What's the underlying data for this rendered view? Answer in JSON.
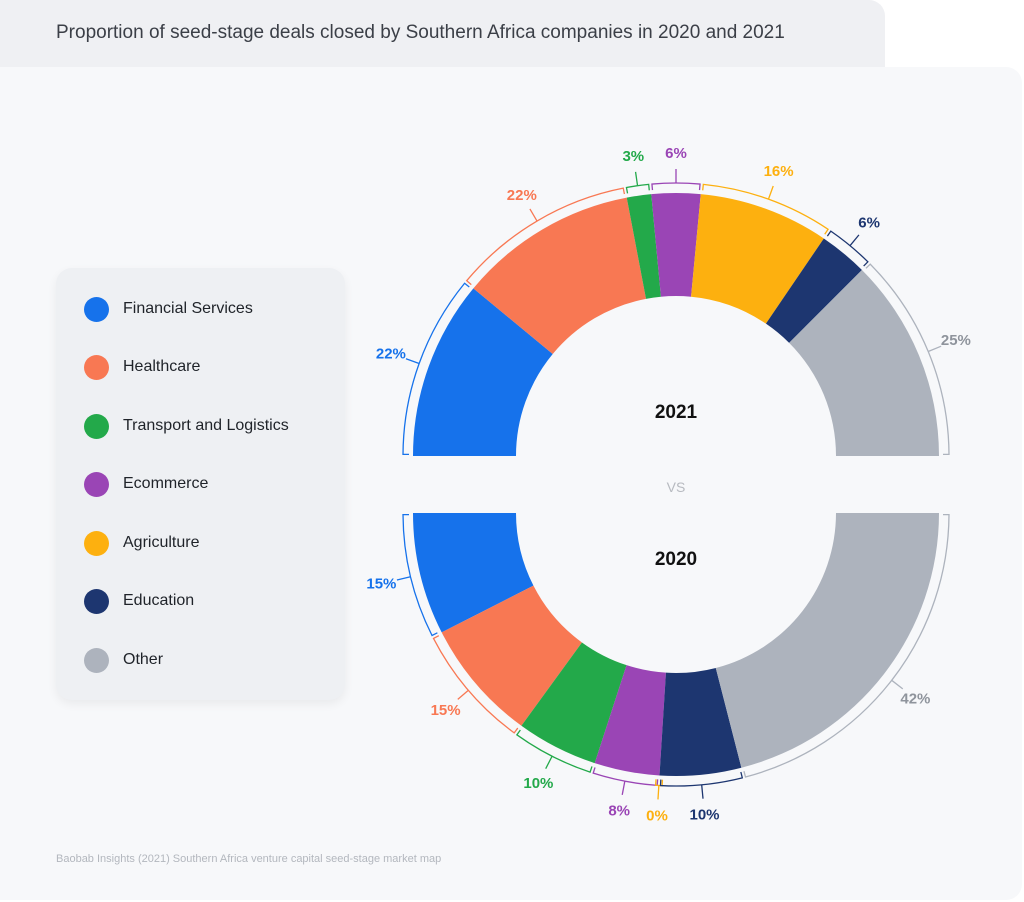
{
  "title": "Proportion of seed-stage deals closed by Southern Africa companies in 2020 and 2021",
  "source": "Baobab Insights (2021) Southern Africa venture capital seed-stage market map",
  "vs_label": "VS",
  "colors": {
    "Financial Services": "#1672eb",
    "Healthcare": "#f87853",
    "Transport and Logistics": "#23a94a",
    "Ecommerce": "#9a45b5",
    "Agriculture": "#fdb00f",
    "Education": "#1d3670",
    "Other": "#adb3bd"
  },
  "chart_data": {
    "type": "pie",
    "variant": "split-donut",
    "categories": [
      "Financial Services",
      "Healthcare",
      "Transport and Logistics",
      "Ecommerce",
      "Agriculture",
      "Education",
      "Other"
    ],
    "series": [
      {
        "name": "2021",
        "label": "2021",
        "values": [
          22,
          22,
          3,
          6,
          16,
          6,
          25
        ],
        "labels": [
          "22%",
          "22%",
          "3%",
          "6%",
          "16%",
          "6%",
          "25%"
        ]
      },
      {
        "name": "2020",
        "label": "2020",
        "values": [
          15,
          15,
          10,
          8,
          0,
          10,
          42
        ],
        "labels": [
          "15%",
          "15%",
          "10%",
          "8%",
          "0%",
          "10%",
          "42%"
        ]
      }
    ],
    "legend_position": "left"
  }
}
